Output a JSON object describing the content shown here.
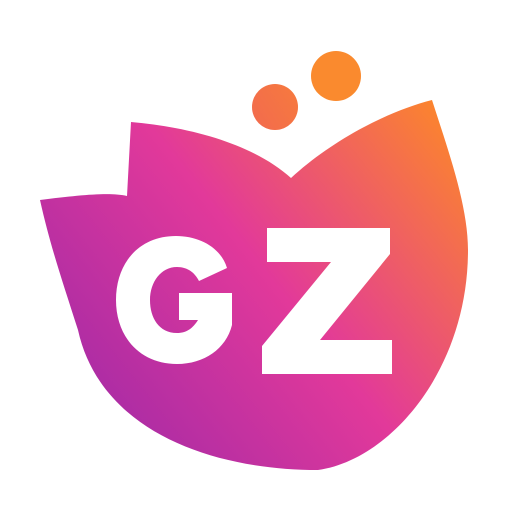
{
  "logo": {
    "lettering": "GZ",
    "icon": "tulip-flower-icon",
    "colors": {
      "background": "#ffffff",
      "gradient_start": "#9b28a8",
      "gradient_mid": "#e2399a",
      "gradient_end": "#ff8f1e",
      "dot_color": "#f36e4a",
      "lettering": "#ffffff"
    }
  }
}
